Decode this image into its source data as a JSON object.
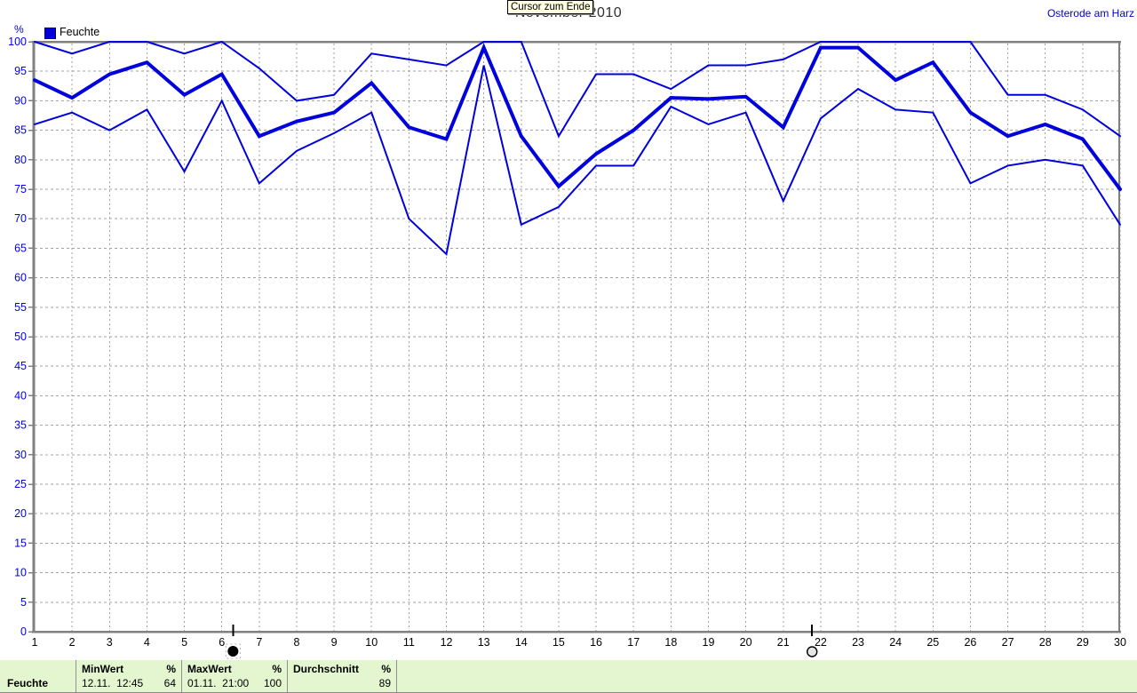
{
  "header": {
    "title": "November 2010",
    "cursor_tooltip": "Cursor zum Ende",
    "station": "Osterode am Harz"
  },
  "legend": {
    "label": "Feuchte",
    "swatch_color": "#0000dd"
  },
  "y_axis_unit": "%",
  "chart_data": {
    "type": "line",
    "title": "November 2010",
    "xlabel": "",
    "ylabel": "%",
    "ylim": [
      0,
      100
    ],
    "ytick_step": 5,
    "grid": true,
    "line_color": "#0000dd",
    "axis_label_color": "#0000ee",
    "x": [
      1,
      2,
      3,
      4,
      5,
      6,
      7,
      8,
      9,
      10,
      11,
      12,
      13,
      14,
      15,
      16,
      17,
      18,
      19,
      20,
      21,
      22,
      23,
      24,
      25,
      26,
      27,
      28,
      29,
      30
    ],
    "series": [
      {
        "name": "Max",
        "style": "thin",
        "values": [
          100,
          98,
          100,
          100,
          98,
          100,
          95.5,
          90,
          91,
          98,
          97,
          96,
          100,
          100,
          84,
          94.5,
          94.5,
          92,
          96,
          96,
          97,
          100,
          100,
          100,
          100,
          100,
          91,
          91,
          88.5,
          84
        ]
      },
      {
        "name": "Durchschnitt",
        "style": "thick",
        "values": [
          93.5,
          90.5,
          94.5,
          96.5,
          91,
          94.5,
          84,
          86.5,
          88,
          93,
          85.5,
          83.5,
          99,
          84,
          75.5,
          81,
          85,
          90.5,
          90.3,
          90.7,
          85.5,
          99,
          99,
          93.5,
          96.5,
          88,
          84,
          86,
          83.5,
          75
        ]
      },
      {
        "name": "Min",
        "style": "thin",
        "values": [
          86,
          88,
          85,
          88.5,
          78,
          90,
          76,
          81.5,
          84.5,
          88,
          70,
          64,
          96,
          69,
          72,
          79,
          79,
          89,
          86,
          88,
          73,
          87,
          92,
          88.5,
          88,
          76,
          79,
          80,
          79,
          69
        ]
      }
    ],
    "cursor_markers": [
      {
        "position_day": 6.3,
        "style": "filled"
      },
      {
        "position_day": 21.77,
        "style": "open"
      }
    ]
  },
  "stats_table": {
    "row_label": "Feuchte",
    "columns": [
      {
        "header": "MinWert",
        "unit": "%",
        "datetime": "12.11.  12:45",
        "value": "64"
      },
      {
        "header": "MaxWert",
        "unit": "%",
        "datetime": "01.11.  21:00",
        "value": "100"
      },
      {
        "header": "Durchschnitt",
        "unit": "%",
        "datetime": "",
        "value": "89"
      }
    ]
  }
}
